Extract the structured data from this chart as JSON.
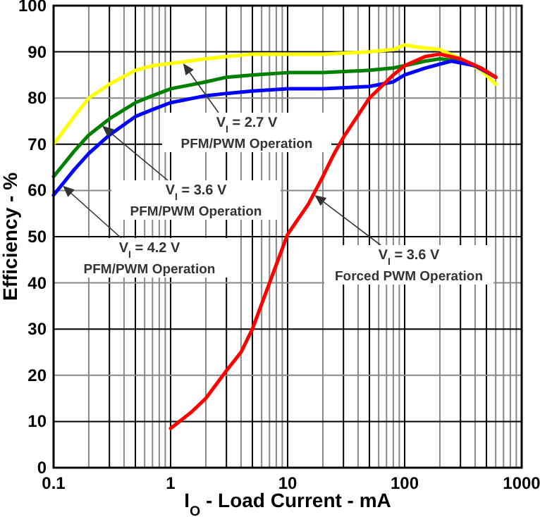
{
  "chart_data": {
    "type": "line",
    "xlabel": "I$_{O}$ - Load Current - mA",
    "ylabel": "Efficiency - %",
    "log": "x",
    "grid": true,
    "xlim": [
      0.1,
      1000
    ],
    "xticks": [
      0.1,
      1,
      10,
      100,
      1000
    ],
    "ylim": [
      0,
      100
    ],
    "yticks": [
      0,
      10,
      20,
      30,
      40,
      50,
      60,
      70,
      80,
      90,
      100
    ],
    "line_style": "solid",
    "series": [
      {
        "color": "#ffff00",
        "x": [
          0.1,
          0.15,
          0.2,
          0.3,
          0.5,
          0.7,
          1,
          2,
          3,
          5,
          10,
          20,
          50,
          80,
          100,
          130,
          200,
          300,
          450,
          600
        ],
        "values": [
          70,
          76,
          80,
          83,
          86,
          87,
          87.5,
          88.5,
          89,
          89.5,
          89.5,
          89.5,
          90,
          90.5,
          91.5,
          91,
          90.5,
          88.5,
          86,
          83
        ]
      },
      {
        "color": "#008000",
        "x": [
          0.1,
          0.15,
          0.2,
          0.3,
          0.5,
          0.7,
          1,
          2,
          3,
          5,
          10,
          20,
          50,
          80,
          100,
          150,
          200,
          300,
          450,
          600
        ],
        "values": [
          63,
          68.5,
          72,
          75.5,
          79,
          80.5,
          82,
          83.5,
          84.5,
          85,
          85.5,
          85.5,
          86,
          86.5,
          87,
          88,
          88.5,
          88,
          86.5,
          84.5
        ]
      },
      {
        "color": "#0000ff",
        "x": [
          0.1,
          0.15,
          0.2,
          0.3,
          0.5,
          0.7,
          1,
          2,
          3,
          5,
          10,
          20,
          50,
          80,
          100,
          150,
          250,
          400,
          600
        ],
        "values": [
          59,
          64.5,
          68,
          72,
          76,
          77.5,
          79,
          80.5,
          81,
          81.5,
          82,
          82,
          82.5,
          83.5,
          85,
          86.5,
          88,
          87,
          84.5
        ]
      },
      {
        "color": "#ff0000",
        "x": [
          1,
          1.5,
          2,
          3,
          4,
          5,
          7,
          10,
          15,
          20,
          25,
          30,
          50,
          80,
          100,
          150,
          200,
          300,
          450,
          600
        ],
        "values": [
          8.5,
          12,
          15,
          21,
          25,
          30,
          40,
          50.5,
          57,
          63,
          68,
          71.5,
          80,
          85,
          87,
          89,
          89.5,
          88.5,
          86.5,
          84.5
        ]
      }
    ],
    "annotations": [
      {
        "text": "V$_{I}$ = 2.7 V\nPFM/PWM Operation",
        "x": 1.28,
        "y": 87.5
      },
      {
        "text": "V$_{I}$ = 3.6 V\nPFM/PWM Operation",
        "x": 0.26,
        "y": 74
      },
      {
        "text": "V$_{I}$ = 4.2 V\nPFM/PWM Operation",
        "x": 0.12,
        "y": 61
      },
      {
        "text": "V$_{I}$ = 3.6 V\nForced PWM Operation",
        "x": 17,
        "y": 59
      }
    ]
  }
}
